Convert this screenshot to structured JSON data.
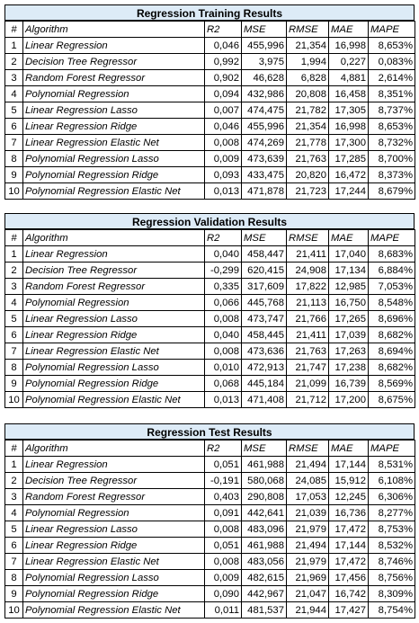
{
  "tables": [
    {
      "title": "Regression Training Results",
      "headers": [
        "#",
        "Algorithm",
        "R2",
        "MSE",
        "RMSE",
        "MAE",
        "MAPE"
      ],
      "rows": [
        [
          "1",
          "Linear Regression",
          "0,046",
          "455,996",
          "21,354",
          "16,998",
          "8,653%"
        ],
        [
          "2",
          "Decision Tree Regressor",
          "0,992",
          "3,975",
          "1,994",
          "0,227",
          "0,083%"
        ],
        [
          "3",
          "Random Forest Regressor",
          "0,902",
          "46,628",
          "6,828",
          "4,881",
          "2,614%"
        ],
        [
          "4",
          "Polynomial Regression",
          "0,094",
          "432,986",
          "20,808",
          "16,458",
          "8,351%"
        ],
        [
          "5",
          "Linear Regression Lasso",
          "0,007",
          "474,475",
          "21,782",
          "17,305",
          "8,737%"
        ],
        [
          "6",
          "Linear Regression Ridge",
          "0,046",
          "455,996",
          "21,354",
          "16,998",
          "8,653%"
        ],
        [
          "7",
          "Linear Regression Elastic Net",
          "0,008",
          "474,269",
          "21,778",
          "17,300",
          "8,732%"
        ],
        [
          "8",
          "Polynomial Regression Lasso",
          "0,009",
          "473,639",
          "21,763",
          "17,285",
          "8,700%"
        ],
        [
          "9",
          "Polynomial Regression Ridge",
          "0,093",
          "433,475",
          "20,820",
          "16,472",
          "8,373%"
        ],
        [
          "10",
          "Polynomial Regression Elastic Net",
          "0,013",
          "471,878",
          "21,723",
          "17,244",
          "8,679%"
        ]
      ]
    },
    {
      "title": "Regression Validation Results",
      "headers": [
        "#",
        "Algorithm",
        "R2",
        "MSE",
        "RMSE",
        "MAE",
        "MAPE"
      ],
      "rows": [
        [
          "1",
          "Linear Regression",
          "0,040",
          "458,447",
          "21,411",
          "17,040",
          "8,683%"
        ],
        [
          "2",
          "Decision Tree Regressor",
          "-0,299",
          "620,415",
          "24,908",
          "17,134",
          "6,884%"
        ],
        [
          "3",
          "Random Forest Regressor",
          "0,335",
          "317,609",
          "17,822",
          "12,985",
          "7,053%"
        ],
        [
          "4",
          "Polynomial Regression",
          "0,066",
          "445,768",
          "21,113",
          "16,750",
          "8,548%"
        ],
        [
          "5",
          "Linear Regression Lasso",
          "0,008",
          "473,747",
          "21,766",
          "17,265",
          "8,696%"
        ],
        [
          "6",
          "Linear Regression Ridge",
          "0,040",
          "458,445",
          "21,411",
          "17,039",
          "8,682%"
        ],
        [
          "7",
          "Linear Regression Elastic Net",
          "0,008",
          "473,636",
          "21,763",
          "17,263",
          "8,694%"
        ],
        [
          "8",
          "Polynomial Regression Lasso",
          "0,010",
          "472,913",
          "21,747",
          "17,238",
          "8,682%"
        ],
        [
          "9",
          "Polynomial Regression Ridge",
          "0,068",
          "445,184",
          "21,099",
          "16,739",
          "8,569%"
        ],
        [
          "10",
          "Polynomial Regression Elastic Net",
          "0,013",
          "471,408",
          "21,712",
          "17,200",
          "8,675%"
        ]
      ]
    },
    {
      "title": "Regression Test Results",
      "headers": [
        "#",
        "Algorithm",
        "R2",
        "MSE",
        "RMSE",
        "MAE",
        "MAPE"
      ],
      "rows": [
        [
          "1",
          "Linear Regression",
          "0,051",
          "461,988",
          "21,494",
          "17,144",
          "8,531%"
        ],
        [
          "2",
          "Decision Tree Regressor",
          "-0,191",
          "580,068",
          "24,085",
          "15,912",
          "6,108%"
        ],
        [
          "3",
          "Random Forest Regressor",
          "0,403",
          "290,808",
          "17,053",
          "12,245",
          "6,306%"
        ],
        [
          "4",
          "Polynomial Regression",
          "0,091",
          "442,641",
          "21,039",
          "16,736",
          "8,277%"
        ],
        [
          "5",
          "Linear Regression Lasso",
          "0,008",
          "483,096",
          "21,979",
          "17,472",
          "8,753%"
        ],
        [
          "6",
          "Linear Regression Ridge",
          "0,051",
          "461,988",
          "21,494",
          "17,144",
          "8,532%"
        ],
        [
          "7",
          "Linear Regression Elastic Net",
          "0,008",
          "483,056",
          "21,979",
          "17,472",
          "8,746%"
        ],
        [
          "8",
          "Polynomial Regression Lasso",
          "0,009",
          "482,615",
          "21,969",
          "17,456",
          "8,756%"
        ],
        [
          "9",
          "Polynomial Regression Ridge",
          "0,090",
          "442,967",
          "21,047",
          "16,742",
          "8,309%"
        ],
        [
          "10",
          "Polynomial Regression Elastic Net",
          "0,011",
          "481,537",
          "21,944",
          "17,427",
          "8,754%"
        ]
      ]
    }
  ]
}
